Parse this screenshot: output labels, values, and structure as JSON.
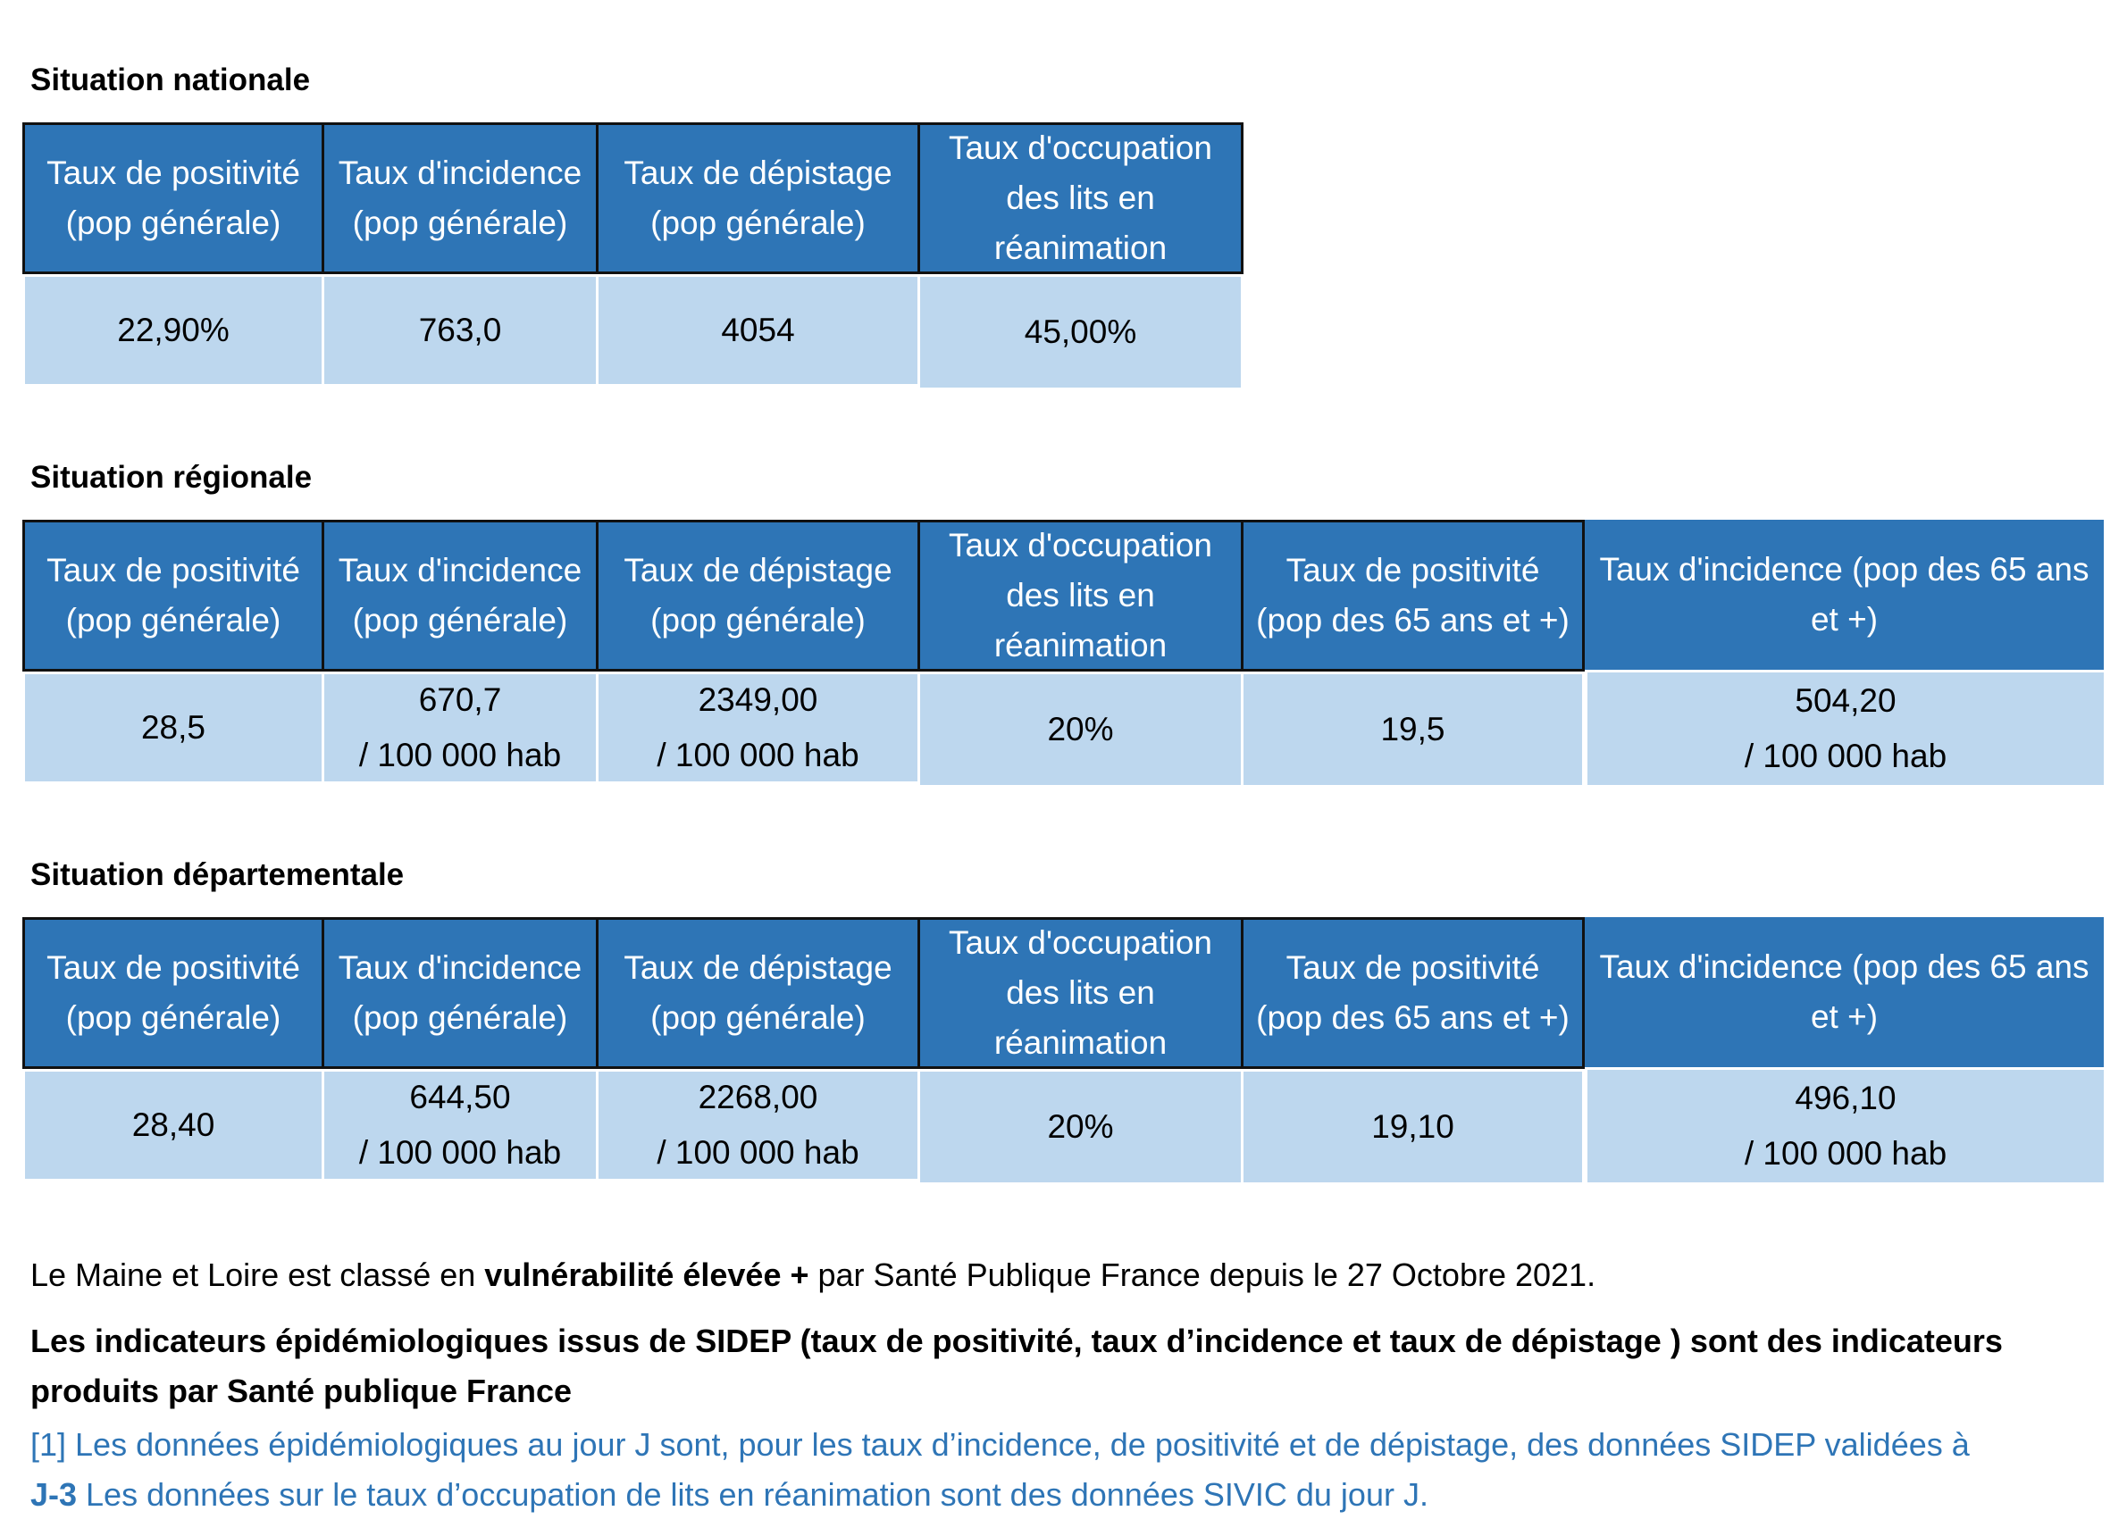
{
  "sections": [
    {
      "title": "Situation nationale",
      "headers": [
        "Taux de positivité\n(pop générale)",
        "Taux d'incidence\n(pop générale)",
        "Taux de dépistage\n(pop générale)",
        "Taux d'occupation\ndes lits en\nréanimation"
      ],
      "values": [
        "22,90%",
        "763,0",
        "4054",
        "45,00%"
      ]
    },
    {
      "title": "Situation régionale",
      "headers": [
        "Taux de positivité\n(pop générale)",
        "Taux d'incidence\n(pop générale)",
        "Taux de dépistage\n(pop générale)",
        "Taux d'occupation\ndes lits en\nréanimation",
        "Taux de positivité\n(pop des 65 ans et +)",
        "Taux d'incidence (pop des 65 ans\net +)"
      ],
      "values": [
        "28,5",
        "670,7\n/ 100 000 hab",
        "2349,00\n/ 100 000 hab",
        "20%",
        "19,5",
        "504,20\n/ 100 000 hab"
      ]
    },
    {
      "title": "Situation départementale",
      "headers": [
        "Taux de positivité\n(pop générale)",
        "Taux d'incidence\n(pop générale)",
        "Taux de dépistage\n(pop générale)",
        "Taux d'occupation\ndes lits en\nréanimation",
        "Taux de positivité\n(pop des 65 ans et +)",
        "Taux d'incidence (pop des 65 ans\net +)"
      ],
      "values": [
        "28,40",
        "644,50\n/ 100 000 hab",
        "2268,00\n/ 100 000 hab",
        "20%",
        "19,10",
        "496,10\n/ 100 000 hab"
      ]
    }
  ],
  "notes": {
    "vuln_pre": "Le Maine et Loire est classé en ",
    "vuln_bold": "vulnérabilité élevée +",
    "vuln_post": " par Santé Publique France depuis le 27 Octobre 2021.",
    "sidep_line1": "Les indicateurs épidémiologiques issus de SIDEP (taux de positivité, taux d’incidence et taux de dépistage ) sont des indicateurs",
    "sidep_line2": "produits par Santé publique France",
    "footnote_line1": "[1] Les données épidémiologiques au jour J sont, pour les taux d’incidence, de positivité et de dépistage, des données SIDEP validées à",
    "footnote_bold": "J-3",
    "footnote_line2_rest": " Les données sur le taux d’occupation de lits en réanimation sont des données SIVIC du jour J."
  },
  "colors": {
    "header_bg": "#2e75b6",
    "value_bg": "#bdd7ee",
    "footnote": "#2e75b6"
  }
}
